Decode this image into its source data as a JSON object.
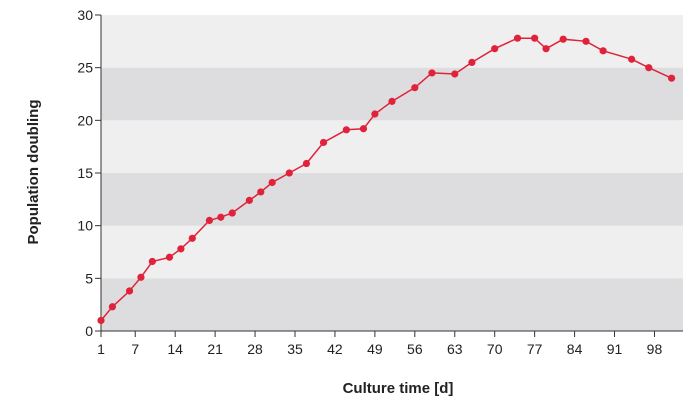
{
  "chart_data": {
    "type": "line",
    "title": "",
    "xlabel": "Culture time [d]",
    "ylabel": "Population doubling",
    "xlim": [
      1,
      103
    ],
    "ylim": [
      0,
      30
    ],
    "x_ticks": [
      1,
      7,
      14,
      21,
      28,
      35,
      42,
      49,
      56,
      63,
      70,
      77,
      84,
      91,
      98
    ],
    "y_ticks": [
      0,
      5,
      10,
      15,
      20,
      25,
      30
    ],
    "grid": "alternating horizontal bands",
    "colors": {
      "line": "#e0233a",
      "band_dark": "#dddddf",
      "band_light": "#efeff0",
      "axis": "#333333"
    },
    "series": [
      {
        "x": [
          1,
          3,
          6,
          8,
          10,
          13,
          15,
          17,
          20,
          22,
          24,
          27,
          29,
          31,
          34,
          37,
          40,
          44,
          47,
          49,
          52,
          56,
          59,
          63,
          66,
          70,
          74,
          77,
          79,
          82,
          86,
          89,
          94,
          97,
          101
        ],
        "y": [
          1.0,
          2.3,
          3.8,
          5.1,
          6.6,
          7.0,
          7.8,
          8.8,
          10.5,
          10.8,
          11.2,
          12.4,
          13.2,
          14.1,
          15.0,
          15.9,
          17.9,
          19.1,
          19.2,
          20.6,
          21.8,
          23.1,
          24.5,
          24.4,
          25.5,
          26.8,
          27.8,
          27.8,
          26.8,
          27.7,
          27.5,
          26.6,
          25.8,
          25.0,
          24.0
        ]
      }
    ]
  }
}
